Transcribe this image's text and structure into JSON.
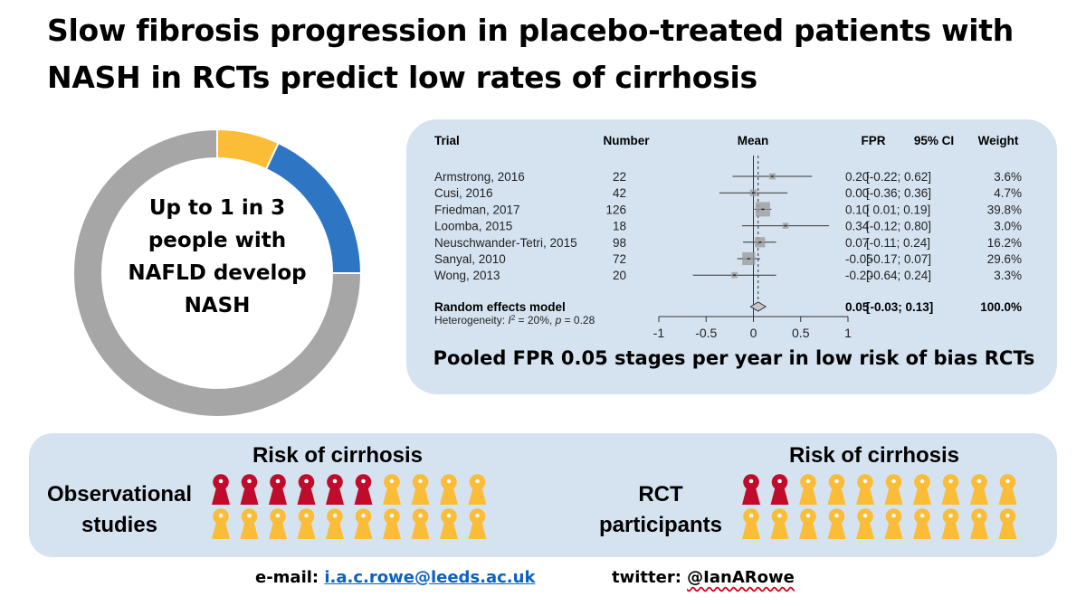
{
  "title_lines": [
    "Slow fibrosis progression in placebo-treated patients with",
    "NASH in RCTs predict low rates of cirrhosis"
  ],
  "donut": {
    "text_lines": [
      "Up to 1 in 3",
      "people with",
      "NAFLD develop",
      "NASH"
    ]
  },
  "chart_data": [
    {
      "type": "pie",
      "subtype": "donut",
      "slices": [
        {
          "value": 0.07,
          "color": "#fbbc37"
        },
        {
          "value": 0.18,
          "color": "#2e76c4"
        },
        {
          "value": 0.75,
          "color": "#a6a6a6"
        }
      ]
    },
    {
      "type": "forest",
      "columns": {
        "trial": "Trial",
        "number": "Number",
        "mean": "Mean",
        "fpr": "FPR",
        "ci": "95% CI",
        "weight": "Weight"
      },
      "studies": [
        {
          "trial": "Armstrong, 2016",
          "number": "22",
          "fpr": 0.2,
          "lower": -0.22,
          "upper": 0.62,
          "weight": 3.6,
          "fpr_text": "0.20",
          "ci_text": "[-0.22; 0.62]",
          "weight_text": "3.6%"
        },
        {
          "trial": "Cusi, 2016",
          "number": "42",
          "fpr": 0.0,
          "lower": -0.36,
          "upper": 0.36,
          "weight": 4.7,
          "fpr_text": "0.00",
          "ci_text": "[-0.36; 0.36]",
          "weight_text": "4.7%"
        },
        {
          "trial": "Friedman, 2017",
          "number": "126",
          "fpr": 0.1,
          "lower": 0.01,
          "upper": 0.19,
          "weight": 39.8,
          "fpr_text": "0.10",
          "ci_text": "[ 0.01; 0.19]",
          "weight_text": "39.8%"
        },
        {
          "trial": "Loomba, 2015",
          "number": "18",
          "fpr": 0.34,
          "lower": -0.12,
          "upper": 0.8,
          "weight": 3.0,
          "fpr_text": "0.34",
          "ci_text": "[-0.12; 0.80]",
          "weight_text": "3.0%"
        },
        {
          "trial": "Neuschwander-Tetri, 2015",
          "number": "98",
          "fpr": 0.07,
          "lower": -0.11,
          "upper": 0.24,
          "weight": 16.2,
          "fpr_text": "0.07",
          "ci_text": "[-0.11; 0.24]",
          "weight_text": "16.2%"
        },
        {
          "trial": "Sanyal, 2010",
          "number": "72",
          "fpr": -0.05,
          "lower": -0.17,
          "upper": 0.07,
          "weight": 29.6,
          "fpr_text": "-0.05",
          "ci_text": "[-0.17; 0.07]",
          "weight_text": "29.6%"
        },
        {
          "trial": "Wong, 2013",
          "number": "20",
          "fpr": -0.2,
          "lower": -0.64,
          "upper": 0.24,
          "weight": 3.3,
          "fpr_text": "-0.20",
          "ci_text": "[-0.64; 0.24]",
          "weight_text": "3.3%"
        }
      ],
      "pooled": {
        "label": "Random effects model",
        "fpr": 0.05,
        "lower": -0.03,
        "upper": 0.13,
        "fpr_text": "0.05",
        "ci_text": "[-0.03; 0.13]",
        "weight_text": "100.0%"
      },
      "heterogeneity": {
        "prefix": "Heterogeneity: ",
        "symbol": "I",
        "superscript": "2",
        "i2_value": " = 20%, ",
        "p_symbol": "p",
        "p_value": " = 0.28"
      },
      "x_ticks": [
        -1,
        -0.5,
        0,
        0.5,
        1
      ],
      "x_tick_labels": [
        "-1",
        "-0.5",
        "0",
        "0.5",
        "1"
      ],
      "xlim": [
        -1,
        1
      ],
      "null_line": 0,
      "pooled_line": 0.05
    },
    {
      "type": "icon_array",
      "title": "Risk of cirrhosis",
      "label_lines": [
        "Observational",
        "studies"
      ],
      "total": 20,
      "highlighted": 6,
      "per_row": 10,
      "highlight_color": "#c00c2a",
      "base_color": "#fbbc37"
    },
    {
      "type": "icon_array",
      "title": "Risk of cirrhosis",
      "label_lines": [
        "RCT",
        "participants"
      ],
      "total": 20,
      "highlighted": 2,
      "per_row": 10,
      "highlight_color": "#c00c2a",
      "base_color": "#fbbc37"
    }
  ],
  "pooled_caption": "Pooled FPR 0.05 stages per year in low risk of bias RCTs",
  "footer": {
    "email_label": "e-mail: ",
    "email": "i.a.c.rowe@leeds.ac.uk",
    "twitter_label": "twitter: ",
    "twitter": "@IanARowe"
  }
}
